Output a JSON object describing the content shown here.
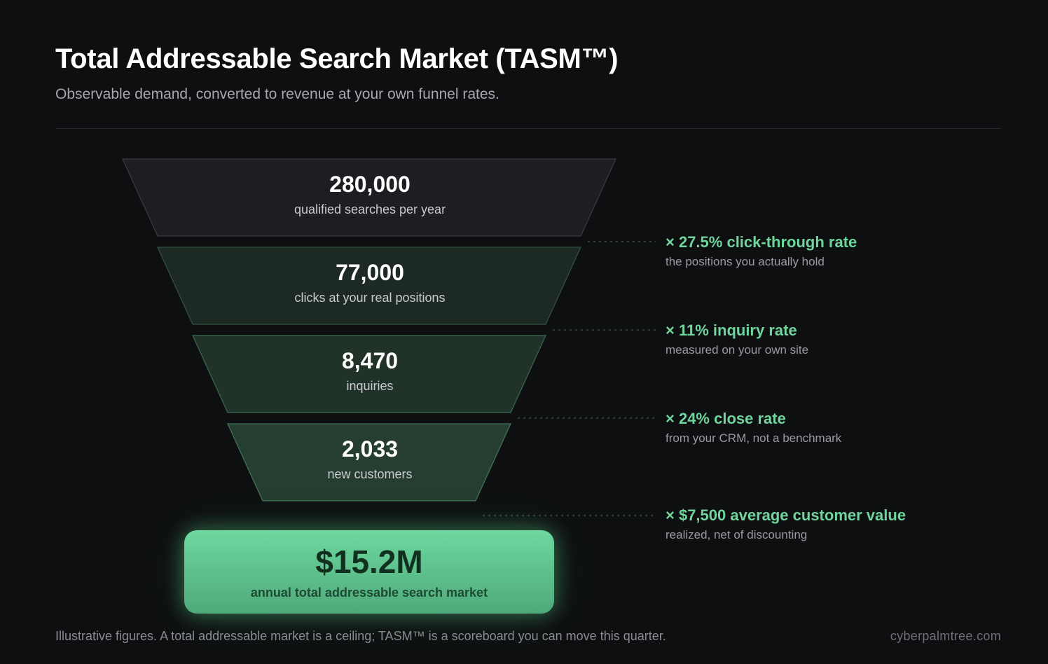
{
  "header": {
    "title": "Total Addressable Search Market (TASM™)",
    "subtitle": "Observable demand, converted to revenue at your own funnel rates."
  },
  "funnel": {
    "stages": [
      {
        "value": "280,000",
        "label": "qualified searches per year",
        "fill": "#1d1e21",
        "stroke": "#3a3c40"
      },
      {
        "value": "77,000",
        "label": "clicks at your real positions",
        "fill": "#1d2a24",
        "stroke": "#335444"
      },
      {
        "value": "8,470",
        "label": "inquiries",
        "fill": "#213229",
        "stroke": "#3a6a50"
      },
      {
        "value": "2,033",
        "label": "new customers",
        "fill": "#263d31",
        "stroke": "#43785a"
      }
    ],
    "conversions": [
      {
        "rate": "× 27.5% click-through rate",
        "note": "the positions you actually hold"
      },
      {
        "rate": "× 11% inquiry rate",
        "note": "measured on your own site"
      },
      {
        "rate": "× 24% close rate",
        "note": "from your CRM, not a benchmark"
      },
      {
        "rate": "× $7,500 average customer value",
        "note": "realized, net of discounting"
      }
    ],
    "result": {
      "value": "$15.2M",
      "label": "annual total addressable search market"
    }
  },
  "footer": {
    "note": "Illustrative figures. A total addressable market is a ceiling; TASM™ is a scoreboard you can move this quarter.",
    "credit": "cyberpalmtree.com"
  },
  "colors": {
    "background": "#0e0f11",
    "accent": "#6fd59c",
    "connector": "#3f5a4c"
  }
}
